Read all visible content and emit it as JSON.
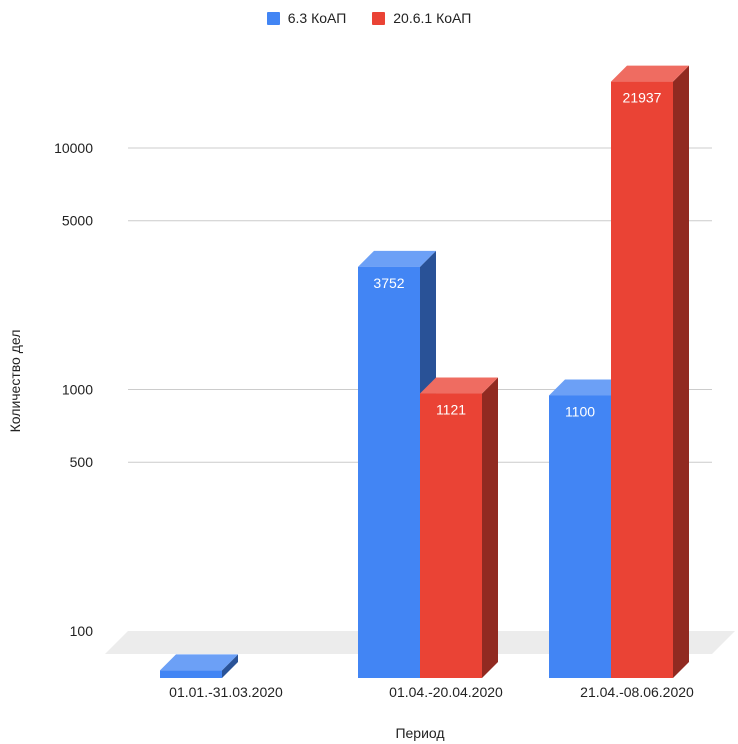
{
  "chart_data": {
    "type": "bar",
    "style": "3d",
    "categories": [
      "01.01.-31.03.2020",
      "01.04.-20.04.2020",
      "21.04.-08.06.2020"
    ],
    "series": [
      {
        "name": "6.3 КоАП",
        "color": "#4285f4",
        "values": [
          80,
          3752,
          1100
        ]
      },
      {
        "name": "20.6.1 КоАП",
        "color": "#ea4335",
        "values": [
          null,
          1121,
          21937
        ]
      }
    ],
    "data_labels": [
      [
        "80",
        "3752",
        "1100"
      ],
      [
        null,
        "1121",
        "21937"
      ]
    ],
    "xlabel": "Период",
    "ylabel": "Количество дел",
    "y_scale": "log",
    "y_ticks": [
      100,
      500,
      1000,
      5000,
      10000
    ],
    "legend_position": "top-center",
    "grid": true
  }
}
